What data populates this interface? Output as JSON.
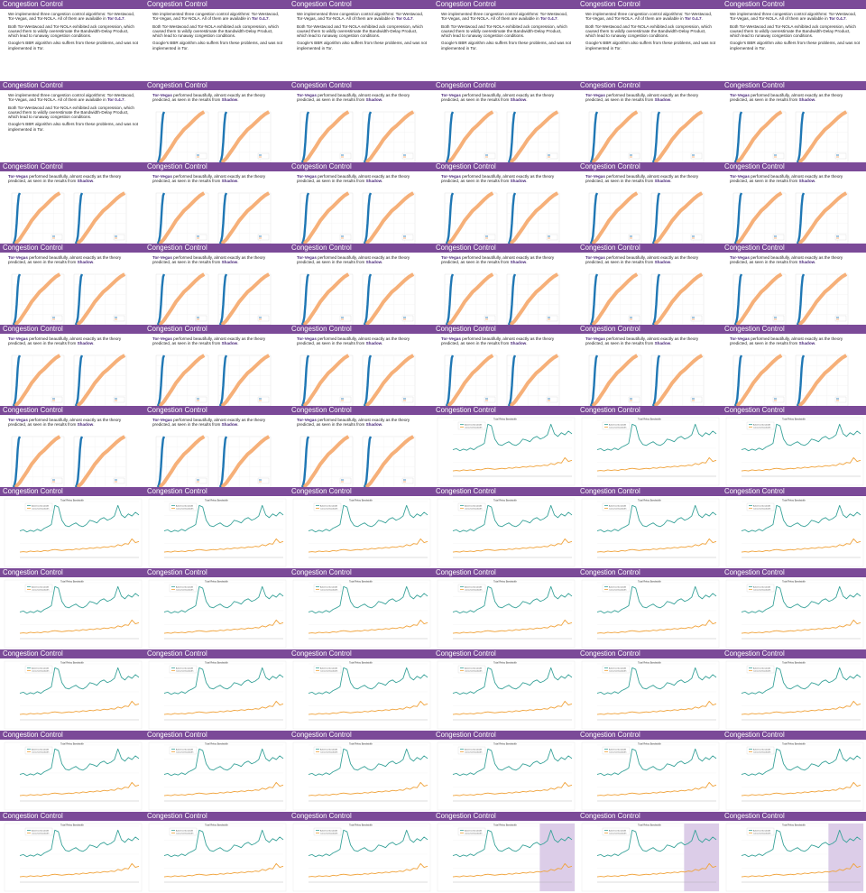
{
  "slide_title": "Congestion Control",
  "intro_slide": {
    "p1_a": "We implemented three congestion control algorithms: Tor-Westwood, Tor-Vegas, and Tor-NOLA. All of them are available in ",
    "p1_b": "Tor 0.4.7",
    "p1_c": ".",
    "p2": "Both Tor-Westwood and Tor-NOLA exhibited ack compression, which caused them to wildly overestimate the Bandwidth-Delay Product, which lead to runaway congestion conditions.",
    "p3": "Google's BBR algorithm also suffers from these problems, and was not implemented in Tor."
  },
  "vegas_slide": {
    "a": "Tor-Vegas",
    "b": " performed beautifully, almost exactly as the theory predicted, as seen in the results from ",
    "c": "Shadow",
    "d": "."
  },
  "bandwidth_slide": {
    "chart_title": "Total Relay Bandwidth",
    "legend_advertised": "Advertised bandwidth",
    "legend_consumed": "Consumed bandwidth"
  },
  "layout": {
    "columns": 6,
    "rows": 11,
    "slide_types": [
      "intro",
      "intro",
      "intro",
      "intro",
      "intro",
      "intro",
      "intro",
      "vegas",
      "vegas",
      "vegas",
      "vegas",
      "vegas",
      "vegas",
      "vegas",
      "vegas",
      "vegas",
      "vegas",
      "vegas",
      "vegas",
      "vegas",
      "vegas",
      "vegas",
      "vegas",
      "vegas",
      "vegas",
      "vegas",
      "vegas",
      "vegas",
      "vegas",
      "vegas",
      "vegas",
      "vegas",
      "vegas",
      "bw",
      "bw",
      "bw",
      "bw",
      "bw",
      "bw",
      "bw",
      "bw",
      "bw",
      "bw",
      "bw",
      "bw",
      "bw",
      "bw",
      "bw",
      "bw",
      "bw",
      "bw",
      "bw",
      "bw",
      "bw",
      "bw",
      "bw",
      "bw",
      "bw",
      "bw",
      "bw",
      "bw",
      "bw",
      "bw",
      "bwhl",
      "bwhl",
      "bwhl"
    ]
  },
  "colors": {
    "title_bar": "#7b4a98",
    "highlight_text": "#4b2a7a",
    "cdf_blue": "#1f77b4",
    "cdf_orange": "#f5a262",
    "bw_advertised": "#3aa39a",
    "bw_consumed": "#f0a33c",
    "highlight_box": "#d8c8e6"
  },
  "chart_data": [
    {
      "type": "line",
      "series": [
        {
          "name": "",
          "values": [
            0.0,
            0.05,
            0.15,
            0.4,
            0.75,
            0.95,
            1.0
          ]
        },
        {
          "name": "",
          "values": [
            0.0,
            0.08,
            0.2,
            0.32,
            0.45,
            0.55,
            0.65,
            0.72,
            0.8,
            0.88,
            0.95,
            1.0
          ]
        }
      ]
    },
    {
      "type": "line",
      "title": "Total Relay Bandwidth",
      "series": [
        {
          "name": "Advertised bandwidth",
          "values": [
            0.5,
            0.52,
            0.48,
            0.51,
            0.49,
            0.53,
            0.5,
            0.55,
            0.58,
            0.62,
            0.98,
            0.95,
            0.7,
            0.6,
            0.58,
            0.62,
            0.65,
            0.6,
            0.58,
            0.62,
            0.7,
            0.68,
            0.65,
            0.72,
            0.75,
            0.7,
            0.73,
            0.78,
            0.98,
            0.8,
            0.75,
            0.82,
            0.78,
            0.85,
            0.8
          ]
        },
        {
          "name": "Consumed bandwidth",
          "values": [
            0.1,
            0.11,
            0.1,
            0.12,
            0.11,
            0.12,
            0.11,
            0.13,
            0.12,
            0.14,
            0.15,
            0.14,
            0.13,
            0.14,
            0.15,
            0.14,
            0.16,
            0.15,
            0.17,
            0.16,
            0.18,
            0.17,
            0.19,
            0.18,
            0.2,
            0.19,
            0.21,
            0.2,
            0.24,
            0.22,
            0.26,
            0.25,
            0.35,
            0.28,
            0.3
          ]
        }
      ]
    }
  ]
}
